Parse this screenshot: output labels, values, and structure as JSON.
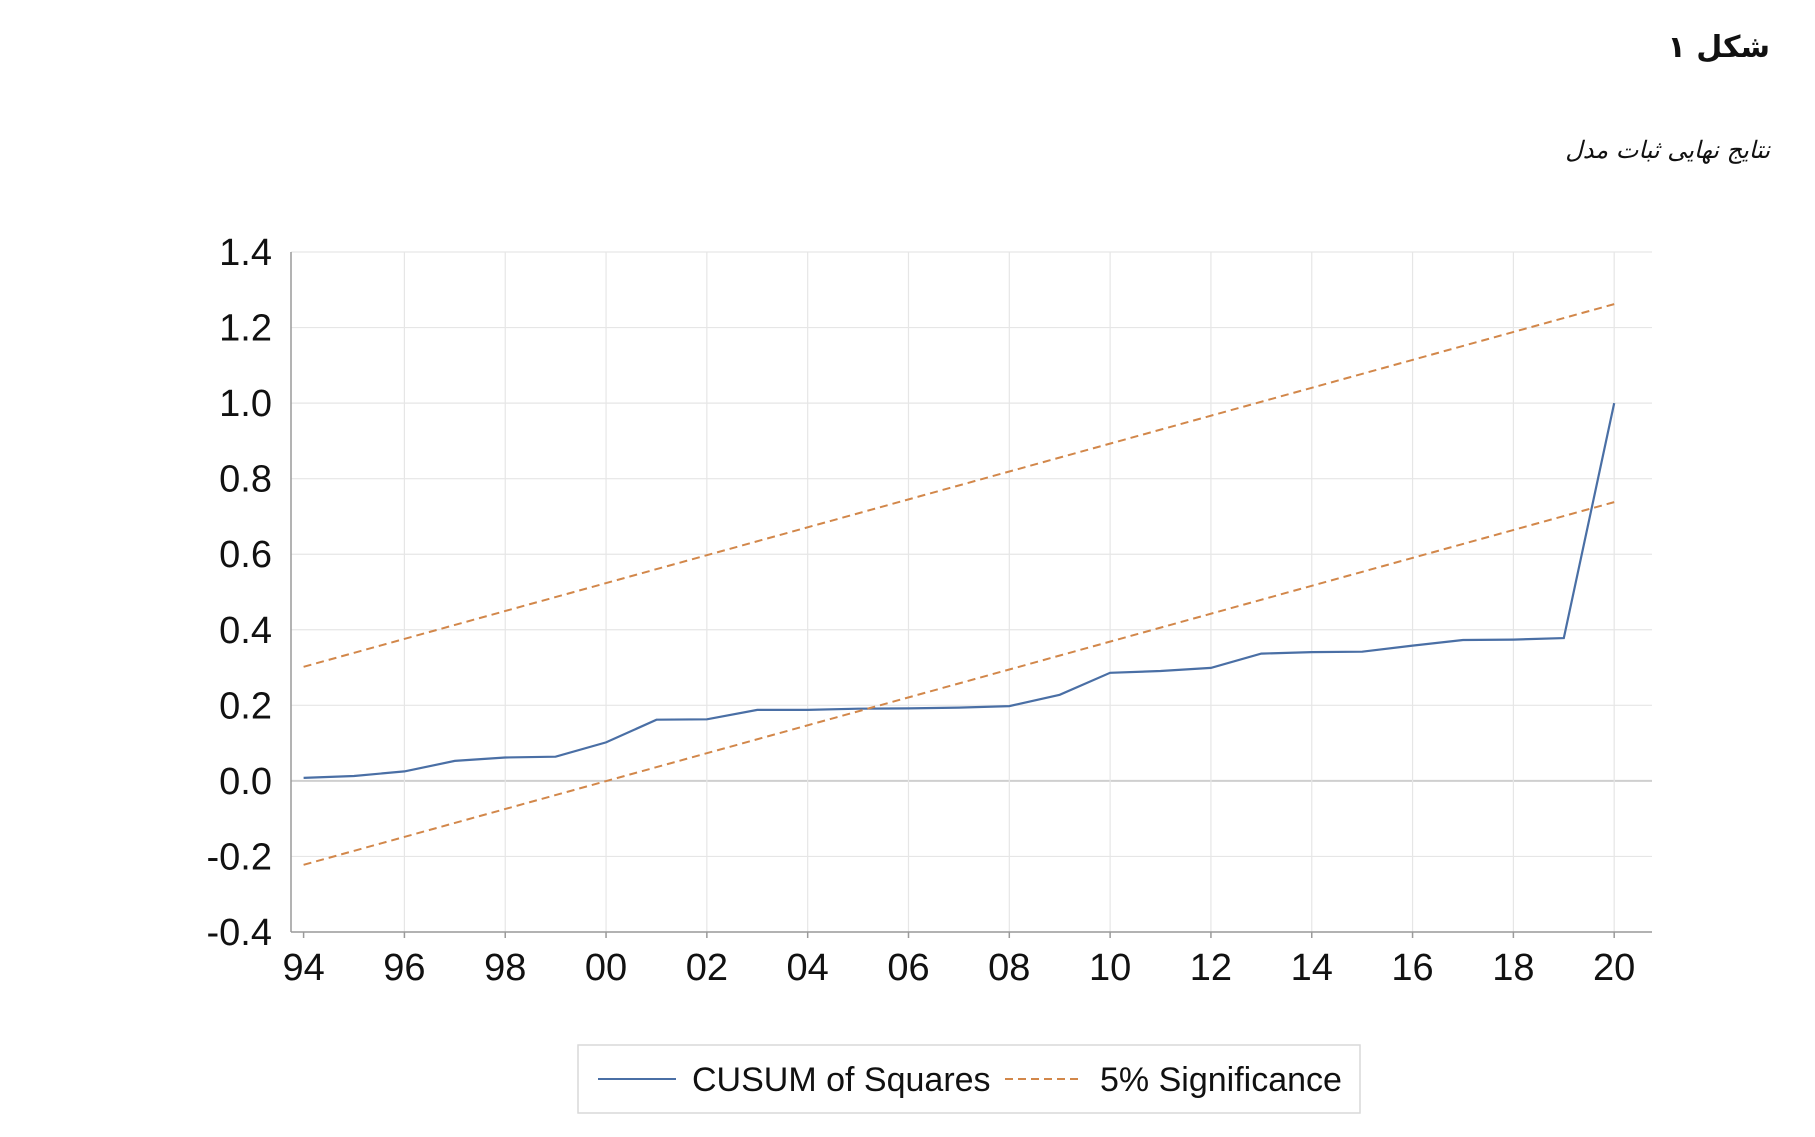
{
  "figure": {
    "heading": "شکل ۱",
    "caption": "نتایج نهایی ثبات مدل"
  },
  "colors": {
    "cusum": "#4a6fa5",
    "significance": "#d2874a",
    "grid": "#e6e6e6",
    "zero_line": "#cfcfcf",
    "axis": "#9a9a9a"
  },
  "chart_data": {
    "type": "line",
    "x_tick_labels": [
      "94",
      "96",
      "98",
      "00",
      "02",
      "04",
      "06",
      "08",
      "10",
      "12",
      "14",
      "16",
      "18",
      "20"
    ],
    "x_tick_years": [
      1994,
      1996,
      1998,
      2000,
      2002,
      2004,
      2006,
      2008,
      2010,
      2012,
      2014,
      2016,
      2018,
      2020
    ],
    "xlim": [
      1993.75,
      2020.75
    ],
    "y_tick_labels": [
      "1.4",
      "1.2",
      "1.0",
      "0.8",
      "0.6",
      "0.4",
      "0.2",
      "0.0",
      "-0.2",
      "-0.4"
    ],
    "y_ticks": [
      1.4,
      1.2,
      1.0,
      0.8,
      0.6,
      0.4,
      0.2,
      0.0,
      -0.2,
      -0.4
    ],
    "ylim": [
      -0.4,
      1.4
    ],
    "grid": true,
    "legend_position": "bottom",
    "series": [
      {
        "name": "CUSUM of Squares",
        "style": "solid",
        "x": [
          1994,
          1995,
          1996,
          1997,
          1998,
          1999,
          2000,
          2001,
          2002,
          2003,
          2004,
          2005,
          2006,
          2007,
          2008,
          2009,
          2010,
          2011,
          2012,
          2013,
          2014,
          2015,
          2016,
          2017,
          2018,
          2019,
          2020
        ],
        "values": [
          0.008,
          0.013,
          0.025,
          0.053,
          0.062,
          0.064,
          0.102,
          0.162,
          0.163,
          0.188,
          0.188,
          0.191,
          0.192,
          0.194,
          0.198,
          0.228,
          0.286,
          0.291,
          0.299,
          0.337,
          0.341,
          0.342,
          0.358,
          0.373,
          0.374,
          0.378,
          1.0
        ]
      },
      {
        "name": "5% Significance",
        "style": "dashed",
        "x": [
          1994,
          2020
        ],
        "values": [
          0.302,
          1.262
        ]
      },
      {
        "style": "dashed",
        "x": [
          1994,
          2020
        ],
        "values": [
          -0.222,
          0.738
        ]
      }
    ]
  },
  "legend": {
    "items": [
      {
        "label": "CUSUM of Squares",
        "style": "solid"
      },
      {
        "label": "5% Significance",
        "style": "dashed"
      }
    ]
  }
}
